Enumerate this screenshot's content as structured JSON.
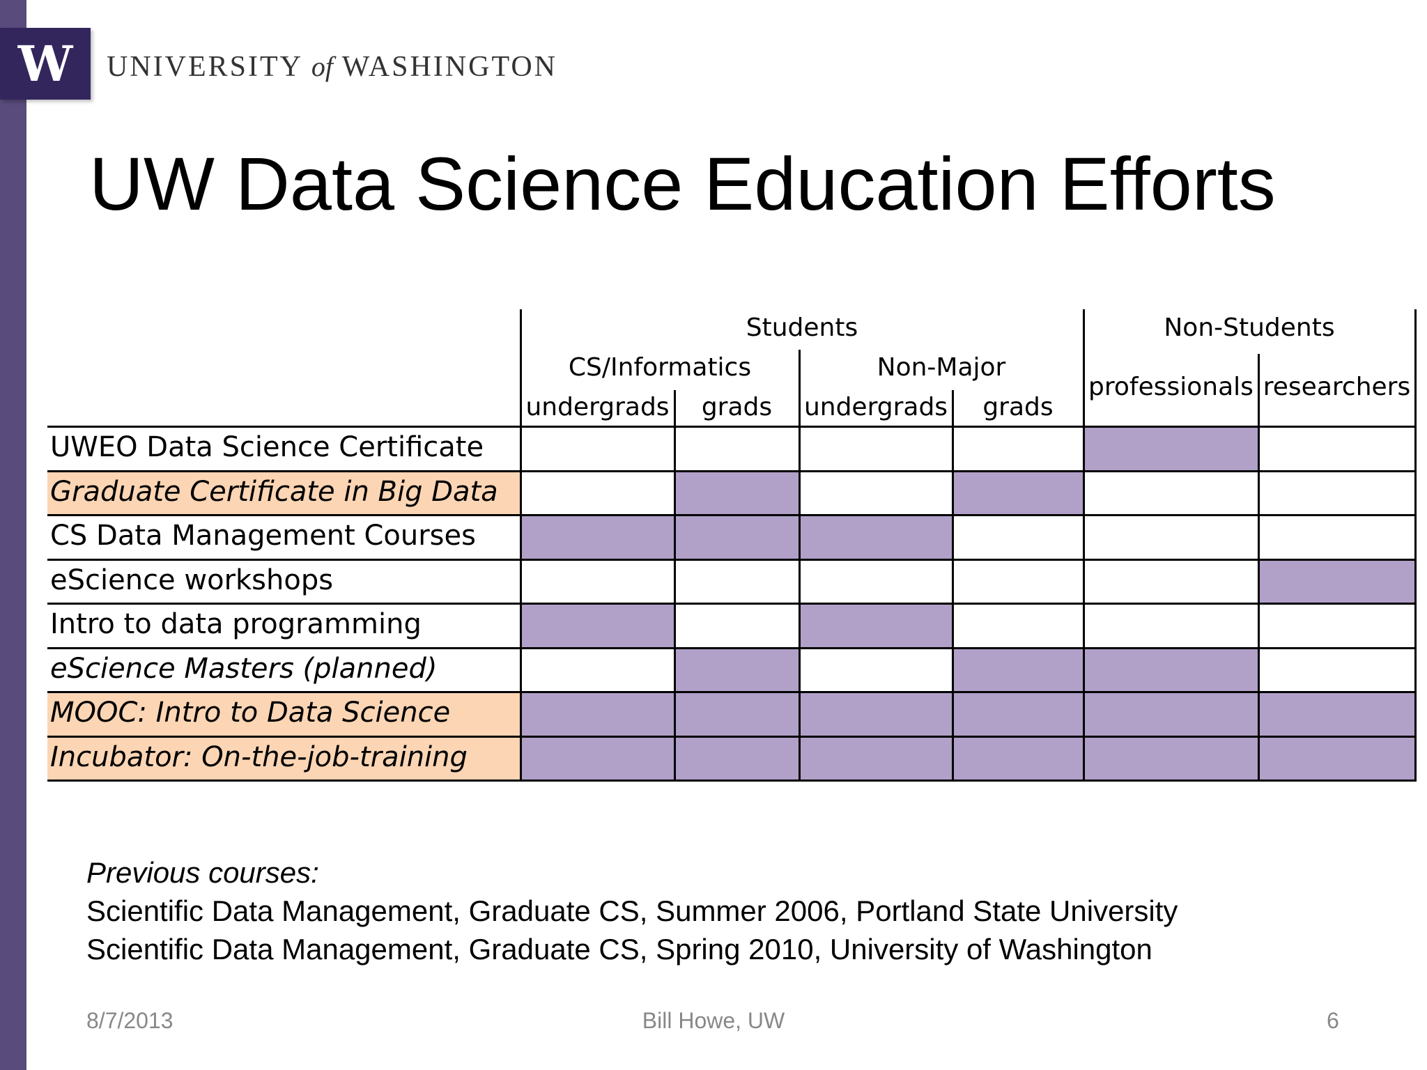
{
  "logo": {
    "letter": "W",
    "wordmark_pre": "UNIVERSITY ",
    "wordmark_of": "of",
    "wordmark_post": " WASHINGTON"
  },
  "title": "UW Data Science Education Efforts",
  "table": {
    "groups": {
      "students": "Students",
      "non_students": "Non-Students",
      "cs": "CS/Informatics",
      "non_major": "Non-Major"
    },
    "columns": [
      "undergrads",
      "grads",
      "undergrads",
      "grads",
      "professionals",
      "researchers"
    ],
    "rows": [
      {
        "label": "UWEO Data Science Certificate",
        "italic": false,
        "highlight": false,
        "cells": [
          0,
          0,
          0,
          0,
          1,
          0
        ]
      },
      {
        "label": "Graduate Certificate in Big Data",
        "italic": true,
        "highlight": true,
        "cells": [
          0,
          1,
          0,
          1,
          0,
          0
        ]
      },
      {
        "label": "CS Data Management Courses",
        "italic": false,
        "highlight": false,
        "cells": [
          1,
          1,
          1,
          0,
          0,
          0
        ]
      },
      {
        "label": "eScience workshops",
        "italic": false,
        "highlight": false,
        "cells": [
          0,
          0,
          0,
          0,
          0,
          1
        ]
      },
      {
        "label": "Intro to data programming",
        "italic": false,
        "highlight": false,
        "cells": [
          1,
          0,
          1,
          0,
          0,
          0
        ]
      },
      {
        "label": "eScience Masters (planned)",
        "italic": true,
        "highlight": false,
        "cells": [
          0,
          1,
          0,
          1,
          1,
          0
        ]
      },
      {
        "label": "MOOC: Intro to Data Science",
        "italic": true,
        "highlight": true,
        "cells": [
          1,
          1,
          1,
          1,
          1,
          1
        ]
      },
      {
        "label": "Incubator: On-the-job-training",
        "italic": true,
        "highlight": true,
        "cells": [
          1,
          1,
          1,
          1,
          1,
          1
        ]
      }
    ],
    "colors": {
      "fill": "#b1a1c8",
      "highlight": "#fcd5b4"
    }
  },
  "previous": {
    "heading": "Previous courses:",
    "lines": [
      "Scientific Data Management, Graduate CS, Summer 2006, Portland State University",
      "Scientific Data Management, Graduate CS, Spring 2010, University of Washington"
    ]
  },
  "footer": {
    "date": "8/7/2013",
    "author": "Bill Howe, UW",
    "page": "6"
  }
}
